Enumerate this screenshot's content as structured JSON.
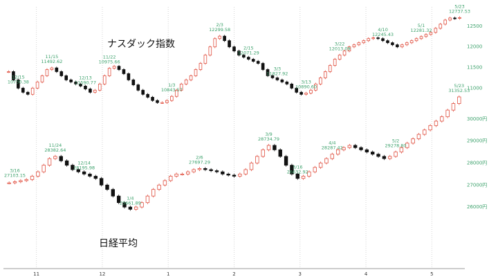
{
  "chart_data": {
    "type": "candlestick",
    "x_ticks": [
      "11",
      "12",
      "1",
      "2",
      "3",
      "4",
      "5"
    ],
    "annotations_labels": {
      "nasdaq": "ナスダック指数",
      "nikkei": "日経平均"
    },
    "y_axis_labels_nasdaq": [
      "12500",
      "12000",
      "11500",
      "11000"
    ],
    "y_axis_labels_nikkei": [
      "30000円",
      "29000円",
      "28000円",
      "27000円",
      "26000円"
    ],
    "series": [
      {
        "name": "ナスダック指数",
        "unit": "index",
        "ylim": [
          10200,
          12800
        ],
        "values": [
          11400,
          11200,
          11000,
          10900,
          10850,
          11000,
          11150,
          11300,
          11450,
          11490,
          11400,
          11300,
          11200,
          11150,
          11100,
          11050,
          10980,
          10900,
          10950,
          11100,
          11300,
          11480,
          11530,
          11450,
          11350,
          11200,
          11080,
          10950,
          10850,
          10780,
          10700,
          10650,
          10650,
          10700,
          10800,
          10950,
          11100,
          11200,
          11300,
          11450,
          11600,
          11800,
          12000,
          12200,
          12260,
          12150,
          12000,
          11900,
          11800,
          11750,
          11700,
          11650,
          11600,
          11450,
          11300,
          11250,
          11200,
          11150,
          11100,
          11000,
          10900,
          10850,
          10880,
          10950,
          11100,
          11250,
          11400,
          11550,
          11700,
          11800,
          11900,
          12000,
          12050,
          12100,
          12150,
          12200,
          12220,
          12200,
          12150,
          12100,
          12050,
          12000,
          12050,
          12100,
          12150,
          12200,
          12250,
          12300,
          12350,
          12450,
          12550,
          12650,
          12700,
          12690,
          12710
        ]
      },
      {
        "name": "日経平均",
        "unit": "円",
        "ylim": [
          25500,
          31000
        ],
        "values": [
          27100,
          27150,
          27200,
          27250,
          27400,
          27600,
          27900,
          28200,
          28300,
          28100,
          27900,
          27700,
          27600,
          27500,
          27400,
          27300,
          27000,
          26800,
          26500,
          26200,
          26000,
          25900,
          26000,
          26200,
          26500,
          26800,
          27000,
          27200,
          27400,
          27500,
          27500,
          27600,
          27700,
          27750,
          27700,
          27650,
          27600,
          27500,
          27450,
          27400,
          27500,
          27700,
          28000,
          28300,
          28600,
          28800,
          28600,
          28300,
          27900,
          27500,
          27300,
          27400,
          27600,
          27800,
          28000,
          28200,
          28400,
          28600,
          28700,
          28800,
          28700,
          28600,
          28500,
          28400,
          28300,
          28200,
          28300,
          28500,
          28700,
          28900,
          29100,
          29300,
          29500,
          29700,
          29900,
          30100,
          30400,
          30700,
          31000
        ]
      }
    ],
    "annotations": [
      {
        "series": 0,
        "text": "12/15\n10730.38",
        "at": 2
      },
      {
        "series": 0,
        "text": "11/15\n11492.62",
        "at": 9
      },
      {
        "series": 0,
        "text": "12/13\n11590.77",
        "at": 16
      },
      {
        "series": 0,
        "text": "11/22\n10975.66",
        "at": 21
      },
      {
        "series": 0,
        "text": "1/3\n10843.57",
        "at": 34
      },
      {
        "series": 0,
        "text": "2/3\n12299.58",
        "at": 44
      },
      {
        "series": 0,
        "text": "2/15\n12071.29",
        "at": 50
      },
      {
        "series": 0,
        "text": "3/3\n11827.92",
        "at": 56
      },
      {
        "series": 0,
        "text": "3/13\n10890.60",
        "at": 62
      },
      {
        "series": 0,
        "text": "3/22\n12013.09",
        "at": 69
      },
      {
        "series": 0,
        "text": "4/10\n12245.43",
        "at": 78
      },
      {
        "series": 0,
        "text": "5/1\n12281.32",
        "at": 86
      },
      {
        "series": 0,
        "text": "5/23\n12737.53",
        "at": 94
      },
      {
        "series": 1,
        "text": "3/16\n27103.15",
        "at": 1
      },
      {
        "series": 1,
        "text": "11/24\n28382.64",
        "at": 8
      },
      {
        "series": 1,
        "text": "12/14\n28195.98",
        "at": 13
      },
      {
        "series": 1,
        "text": "1/4\n25661.89",
        "at": 21
      },
      {
        "series": 1,
        "text": "2/6\n27697.29",
        "at": 33
      },
      {
        "series": 1,
        "text": "3/9\n28734.79",
        "at": 45
      },
      {
        "series": 1,
        "text": "3/16\n26632.92",
        "at": 50
      },
      {
        "series": 1,
        "text": "4/4\n28287.42",
        "at": 56
      },
      {
        "series": 1,
        "text": "5/2\n29278.80",
        "at": 67
      },
      {
        "series": 1,
        "text": "5/23\n31352.53",
        "at": 78
      }
    ]
  }
}
